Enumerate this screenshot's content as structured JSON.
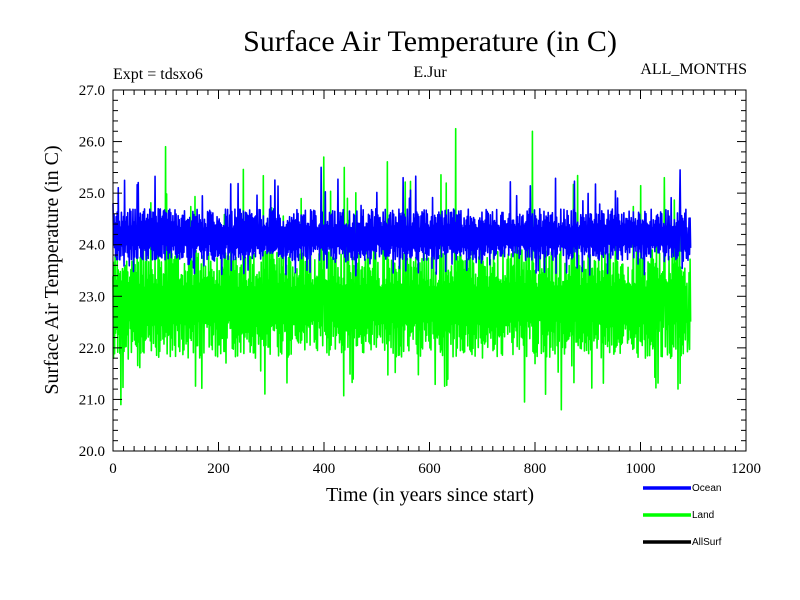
{
  "chart_data": {
    "type": "line",
    "title": "Surface Air Temperature (in C)",
    "subtitle_left": "Expt = tdsxo6",
    "subtitle_center": "E.Jur",
    "subtitle_right": "ALL_MONTHS",
    "xlabel": "Time (in years since start)",
    "ylabel": "Surface Air Temperature (in C)",
    "xlim": [
      0,
      1200
    ],
    "ylim": [
      20.0,
      27.0
    ],
    "xticks": [
      0,
      200,
      400,
      600,
      800,
      1000,
      1200
    ],
    "xtick_labels": [
      "0",
      "200",
      "400",
      "600",
      "800",
      "1000",
      "1200"
    ],
    "yticks": [
      20.0,
      21.0,
      22.0,
      23.0,
      24.0,
      25.0,
      26.0,
      27.0
    ],
    "ytick_labels": [
      "20.0",
      "21.0",
      "22.0",
      "23.0",
      "24.0",
      "25.0",
      "26.0",
      "27.0"
    ],
    "x_end": 1095,
    "grid": false,
    "legend_position": "bottom-right",
    "series": [
      {
        "name": "Land",
        "color": "#00ff00",
        "mean": 22.85,
        "band_low": 21.8,
        "band_high": 23.9,
        "min": 20.8,
        "max": 26.25,
        "peaks": [
          {
            "x": 100,
            "y": 25.9
          },
          {
            "x": 400,
            "y": 25.7
          },
          {
            "x": 650,
            "y": 26.25
          },
          {
            "x": 795,
            "y": 26.2
          },
          {
            "x": 1045,
            "y": 25.3
          }
        ],
        "troughs": [
          {
            "x": 15,
            "y": 20.9
          },
          {
            "x": 780,
            "y": 20.95
          },
          {
            "x": 850,
            "y": 20.8
          },
          {
            "x": 1090,
            "y": 22.2
          }
        ]
      },
      {
        "name": "Ocean",
        "color": "#0000ff",
        "mean": 24.15,
        "band_low": 23.7,
        "band_high": 24.7,
        "min": 23.3,
        "max": 25.55,
        "peaks": [
          {
            "x": 395,
            "y": 25.5
          },
          {
            "x": 550,
            "y": 25.3
          },
          {
            "x": 1075,
            "y": 25.45
          }
        ],
        "troughs": [
          {
            "x": 460,
            "y": 23.4
          },
          {
            "x": 1090,
            "y": 23.7
          }
        ]
      },
      {
        "name": "AllSurf",
        "color": "#000000",
        "points": []
      }
    ],
    "legend": [
      {
        "label": "Ocean",
        "color": "#0000ff"
      },
      {
        "label": "Land",
        "color": "#00ff00"
      },
      {
        "label": "AllSurf",
        "color": "#000000"
      }
    ]
  }
}
